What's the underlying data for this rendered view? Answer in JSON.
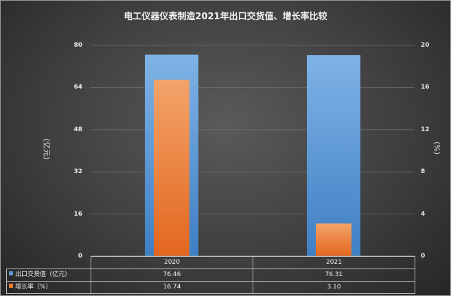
{
  "chart_data": {
    "type": "bar",
    "title": "电工仪器仪表制造2021年出口交货值、增长率比较",
    "categories": [
      "2020",
      "2021"
    ],
    "series": [
      {
        "name": "出口交货值（亿元）",
        "axis": "left",
        "color": "#5b9bd5",
        "values": [
          76.46,
          76.31
        ],
        "labels": [
          "76.46",
          "76.31"
        ]
      },
      {
        "name": "增长率（%）",
        "axis": "right",
        "color": "#ed7d31",
        "values": [
          16.74,
          3.1
        ],
        "labels": [
          "16.74",
          "3.10"
        ]
      }
    ],
    "ylabel_left": "(亿元)",
    "ylabel_right": "(%)",
    "ylim_left": [
      0,
      80
    ],
    "ylim_right": [
      0,
      20
    ],
    "yticks_left": [
      "0",
      "16",
      "32",
      "48",
      "64",
      "80"
    ],
    "yticks_right": [
      "0",
      "4",
      "8",
      "12",
      "16",
      "20"
    ],
    "grid": true,
    "legend": "data-table"
  }
}
